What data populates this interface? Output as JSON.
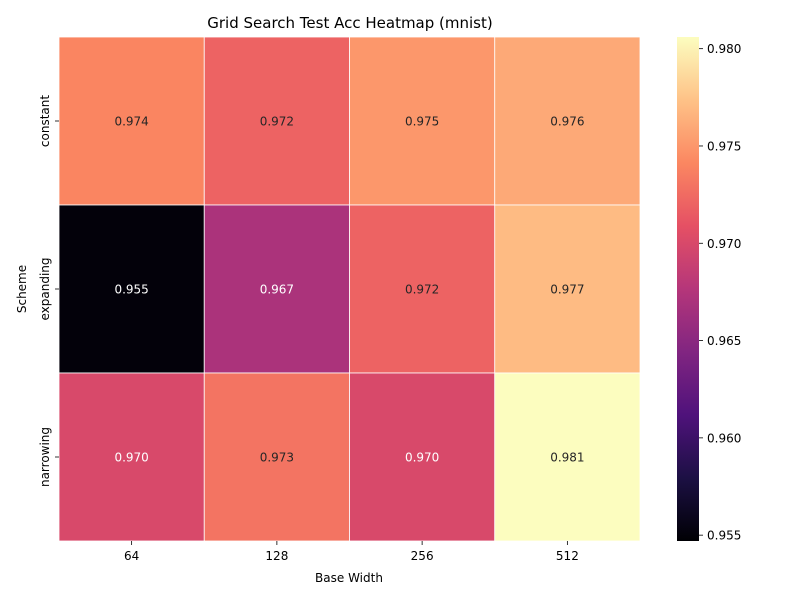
{
  "chart_data": {
    "type": "heatmap",
    "title": "Grid Search Test Acc Heatmap (mnist)",
    "xlabel": "Base Width",
    "ylabel": "Scheme",
    "x_categories": [
      "64",
      "128",
      "256",
      "512"
    ],
    "y_categories": [
      "constant",
      "expanding",
      "narrowing"
    ],
    "values": [
      [
        0.974,
        0.972,
        0.975,
        0.976
      ],
      [
        0.955,
        0.967,
        0.972,
        0.977
      ],
      [
        0.97,
        0.973,
        0.97,
        0.981
      ]
    ],
    "value_labels": [
      [
        "0.974",
        "0.972",
        "0.975",
        "0.976"
      ],
      [
        "0.955",
        "0.967",
        "0.972",
        "0.977"
      ],
      [
        "0.970",
        "0.973",
        "0.970",
        "0.981"
      ]
    ],
    "colorscale": "magma",
    "vmin": 0.9547,
    "vmax": 0.9806,
    "colorbar_ticks": [
      "0.955",
      "0.960",
      "0.965",
      "0.970",
      "0.975",
      "0.980"
    ],
    "grid": false
  }
}
